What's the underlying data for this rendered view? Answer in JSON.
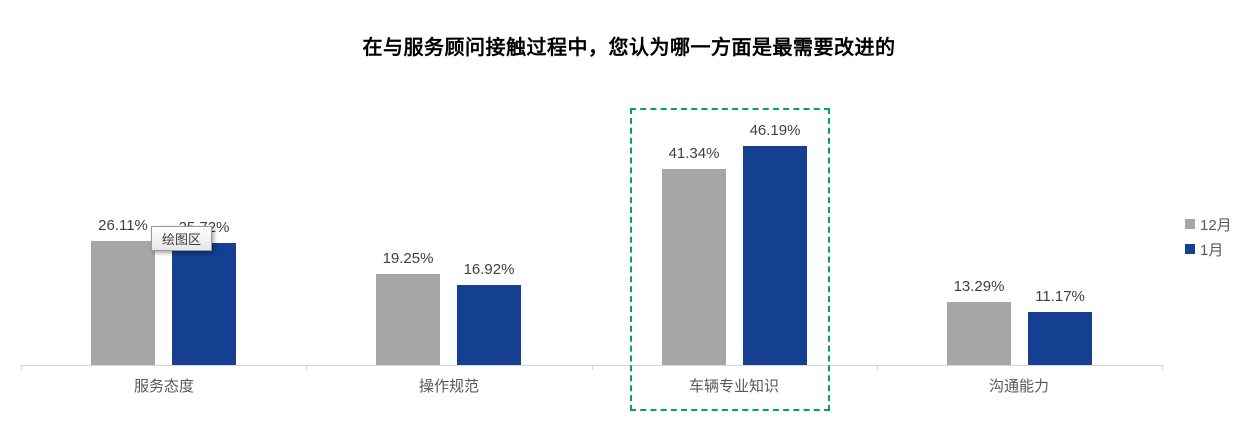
{
  "title": "在与服务顾问接触过程中，您认为哪一方面是最需要改进的",
  "tooltip": {
    "text": "绘图区"
  },
  "legend": {
    "position": "right",
    "items": [
      {
        "label": "12月",
        "color": "#a6a6a6"
      },
      {
        "label": "1月",
        "color": "#153f90"
      }
    ]
  },
  "colors": {
    "series_december": "#a6a6a6",
    "series_january": "#153f90",
    "selection_border": "#00a650",
    "axis_line": "#d6d6d6",
    "data_label_text": "#404040",
    "category_text": "#595959",
    "title_text": "#000000"
  },
  "selection": {
    "highlighted_category": "车辆专业知识"
  },
  "chart_data": {
    "type": "bar",
    "title": "在与服务顾问接触过程中，您认为哪一方面是最需要改进的",
    "categories": [
      "服务态度",
      "操作规范",
      "车辆专业知识",
      "沟通能力"
    ],
    "series": [
      {
        "name": "12月",
        "color": "#a6a6a6",
        "values": [
          26.11,
          19.25,
          41.34,
          13.29
        ],
        "labels": [
          "26.11%",
          "19.25%",
          "41.34%",
          "13.29%"
        ]
      },
      {
        "name": "1月",
        "color": "#153f90",
        "values": [
          25.72,
          16.92,
          46.19,
          11.17
        ],
        "labels": [
          "25.72%",
          "16.92%",
          "46.19%",
          "11.17%"
        ]
      }
    ],
    "value_suffix": "%",
    "ylim": [
      0,
      50
    ],
    "grid": false,
    "data_labels": true,
    "legend_position": "right",
    "xlabel": "",
    "ylabel": ""
  }
}
